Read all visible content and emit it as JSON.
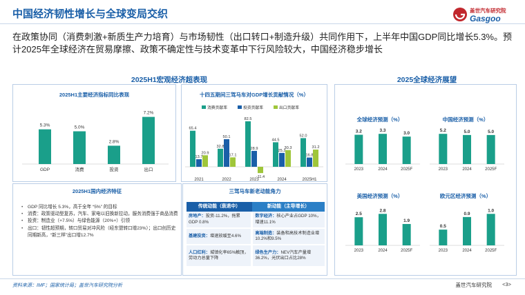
{
  "header": {
    "title": "中国经济韧性增长与全球变局交织",
    "logo_brand": "盖世汽车研究院",
    "logo_word": "Gasgoo"
  },
  "intro": "在政策协同（消费刺激+新质生产力培育）与市场韧性（出口转口+制造升级）共同作用下，上半年中国GDP同比增长5.3%。预计2025年全球经济在贸易摩擦、政策不确定性与技术变革中下行风险较大，中国经济稳步增长",
  "left_section": {
    "heading": "2025H1宏观经济超表现",
    "panel1_title": "2025H1主要经济指标同比表现",
    "panel2_title": "十四五期间三驾马车对GDP增长贡献情况（%）",
    "panel3_title": "2025H1国内经济特征",
    "panel4_title": "三驾马车新老动能角力",
    "bullets": [
      "GDP 同比增长 5.3%，高于全年 “5%” 的目标",
      "消费：政策驱动型复苏，汽车、家电以旧换新拉动，服务消费强于商品消费",
      "投资：制造业（+7.5%）与绿色能源（20%+）引领",
      "出口：韧性超预期，转口贸易对冲风险（经东盟转口增23%）；出口创历史同期新高，“新三样”出口增12.7%"
    ],
    "table": {
      "headers": [
        "传统动能（衰退中）",
        "新动能（主导增长）"
      ],
      "rows": [
        {
          "old_key": "房地产：",
          "old_text": "投资-11.2%，拖累GDP 0.8%",
          "new_key": "数字经济：",
          "new_text": "核心产业占GDP 10%，增速11.1%"
        },
        {
          "old_key": "基建投资：",
          "old_text": "增速放缓至4.6%",
          "new_key": "高端制造：",
          "new_text": "装备和高技术制造业增10.2%和9.5%"
        },
        {
          "old_key": "人口红利：",
          "old_text": "城镇化率65%触顶，劳动力总量下降",
          "new_key": "绿色生产力：",
          "new_text": "NEV汽车产量增36.2%，光伏出口占比28%"
        }
      ]
    }
  },
  "right_section": {
    "heading": "2025全球经济展望",
    "mini_charts": [
      {
        "title": "全球经济预测（%）",
        "categories": [
          "2023",
          "2024",
          "2025F"
        ],
        "values": [
          3.2,
          3.3,
          3.0
        ],
        "labels": [
          "3.2",
          "3.3",
          "3.0"
        ]
      },
      {
        "title": "中国经济预测（%）",
        "categories": [
          "2023",
          "2024",
          "2025F"
        ],
        "values": [
          5.2,
          5.0,
          5.0
        ],
        "labels": [
          "5.2",
          "5.0",
          "5.0"
        ]
      },
      {
        "title": "美国经济预测（%）",
        "categories": [
          "2023",
          "2024",
          "2025F"
        ],
        "values": [
          2.5,
          2.8,
          1.9
        ],
        "labels": [
          "2.5",
          "2.8",
          "1.9"
        ]
      },
      {
        "title": "欧元区经济预测（%）",
        "categories": [
          "2023",
          "2024",
          "2025F"
        ],
        "values": [
          0.5,
          0.9,
          1.0
        ],
        "labels": [
          "0.5",
          "0.9",
          "1.0"
        ]
      }
    ]
  },
  "chart_data": [
    {
      "type": "bar",
      "title": "2025H1主要经济指标同比表现",
      "categories": [
        "GDP",
        "消费",
        "投资",
        "出口"
      ],
      "values": [
        5.3,
        5.0,
        2.8,
        7.2
      ],
      "labels": [
        "5.3%",
        "5.0%",
        "2.8%",
        "7.2%"
      ],
      "ylim": [
        0,
        8
      ],
      "color": "#1a9f8a"
    },
    {
      "type": "bar",
      "title": "十四五期间三驾马车对GDP增长贡献情况（%）",
      "categories": [
        "2021",
        "2022",
        "2023",
        "2024",
        "2025H1"
      ],
      "series": [
        {
          "name": "消费贡献率",
          "values": [
            65.4,
            32.8,
            82.5,
            44.5,
            52.0
          ],
          "labels": [
            "65.4",
            "32.8",
            "82.5",
            "44.5",
            "52.0"
          ],
          "color": "#1a9f8a"
        },
        {
          "name": "投资贡献率",
          "values": [
            13.7,
            50.1,
            28.9,
            25.2,
            16.8
          ],
          "labels": [
            "13.7",
            "50.1",
            "28.9",
            "25.2",
            "16.8"
          ],
          "color": "#1a5fa8"
        },
        {
          "name": "出口贡献率",
          "values": [
            20.9,
            17.1,
            -11.4,
            30.3,
            31.2
          ],
          "labels": [
            "20.9",
            "17.1",
            "-11.4",
            "30.3",
            "31.2"
          ],
          "color": "#9fc63a"
        }
      ],
      "ylim": [
        -15,
        90
      ],
      "legend": "top"
    }
  ],
  "footer": {
    "source": "资料来源：IMF；国家统计局；盖世汽车研究院分析",
    "brand": "盖世汽车研究院",
    "page": "<3>"
  },
  "colors": {
    "primary": "#1a5fa8",
    "teal": "#1a9f8a",
    "green": "#9fc63a",
    "panel_border": "#b9cde6"
  }
}
